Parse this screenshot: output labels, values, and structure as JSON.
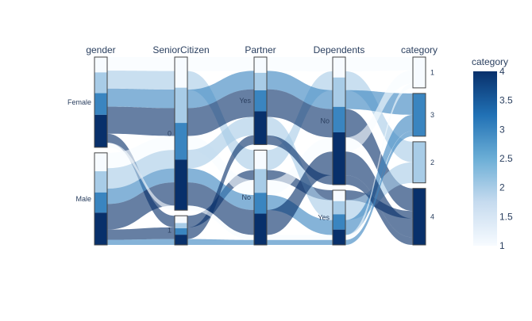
{
  "chart_data": {
    "type": "parallel_categories",
    "colorscale_name": "Blues",
    "colorscale": [
      "#f7fbff",
      "#c6dbef",
      "#6baed6",
      "#2171b5",
      "#08306b"
    ],
    "colorbar": {
      "title": "category",
      "range": [
        1,
        4
      ],
      "ticks": [
        "1",
        "1.5",
        "2",
        "2.5",
        "3",
        "3.5",
        "4"
      ]
    },
    "color_levels": [
      1,
      2,
      3,
      4
    ],
    "dimensions": [
      {
        "title": "gender",
        "categories": [
          {
            "label": "Female",
            "share": 0.495,
            "mix": [
              0.17,
              0.23,
              0.24,
              0.36
            ]
          },
          {
            "label": "Male",
            "share": 0.505,
            "mix": [
              0.2,
              0.23,
              0.22,
              0.35
            ]
          }
        ]
      },
      {
        "title": "SeniorCitizen",
        "categories": [
          {
            "label": "0",
            "share": 0.84,
            "mix": [
              0.2,
              0.23,
              0.24,
              0.33
            ]
          },
          {
            "label": "1",
            "share": 0.16,
            "mix": [
              0.25,
              0.18,
              0.22,
              0.35
            ]
          }
        ]
      },
      {
        "title": "Partner",
        "categories": [
          {
            "label": "Yes",
            "share": 0.48,
            "mix": [
              0.18,
              0.2,
              0.24,
              0.38
            ]
          },
          {
            "label": "No",
            "share": 0.52,
            "mix": [
              0.2,
              0.25,
              0.22,
              0.33
            ]
          }
        ]
      },
      {
        "title": "Dependents",
        "categories": [
          {
            "label": "No",
            "share": 0.7,
            "mix": [
              0.16,
              0.23,
              0.2,
              0.41
            ]
          },
          {
            "label": "Yes",
            "share": 0.3,
            "mix": [
              0.2,
              0.24,
              0.28,
              0.28
            ]
          }
        ]
      },
      {
        "title": "category",
        "categories": [
          {
            "label": "1",
            "share": 0.18,
            "mix": [
              1,
              0,
              0,
              0
            ]
          },
          {
            "label": "3",
            "share": 0.25,
            "mix": [
              0,
              0,
              1,
              0
            ]
          },
          {
            "label": "2",
            "share": 0.24,
            "mix": [
              0,
              1,
              0,
              0
            ]
          },
          {
            "label": "4",
            "share": 0.33,
            "mix": [
              0,
              0,
              0,
              1
            ]
          }
        ]
      }
    ],
    "flows": [
      {
        "path": [
          0,
          0,
          0,
          0,
          0
        ],
        "level": 1,
        "weight": 3
      },
      {
        "path": [
          0,
          0,
          1,
          0,
          2
        ],
        "level": 2,
        "weight": 4
      },
      {
        "path": [
          0,
          0,
          0,
          0,
          1
        ],
        "level": 3,
        "weight": 4
      },
      {
        "path": [
          0,
          0,
          0,
          0,
          3
        ],
        "level": 4,
        "weight": 6
      },
      {
        "path": [
          0,
          1,
          1,
          1,
          3
        ],
        "level": 4,
        "weight": 2
      },
      {
        "path": [
          1,
          0,
          1,
          0,
          0
        ],
        "level": 1,
        "weight": 3
      },
      {
        "path": [
          1,
          0,
          0,
          1,
          2
        ],
        "level": 2,
        "weight": 4
      },
      {
        "path": [
          1,
          0,
          1,
          1,
          1
        ],
        "level": 3,
        "weight": 3
      },
      {
        "path": [
          1,
          0,
          1,
          0,
          3
        ],
        "level": 4,
        "weight": 5
      },
      {
        "path": [
          1,
          1,
          0,
          0,
          3
        ],
        "level": 4,
        "weight": 2
      },
      {
        "path": [
          0,
          0,
          1,
          1,
          0
        ],
        "level": 1,
        "weight": 1
      },
      {
        "path": [
          1,
          1,
          1,
          1,
          1
        ],
        "level": 3,
        "weight": 1
      }
    ]
  }
}
